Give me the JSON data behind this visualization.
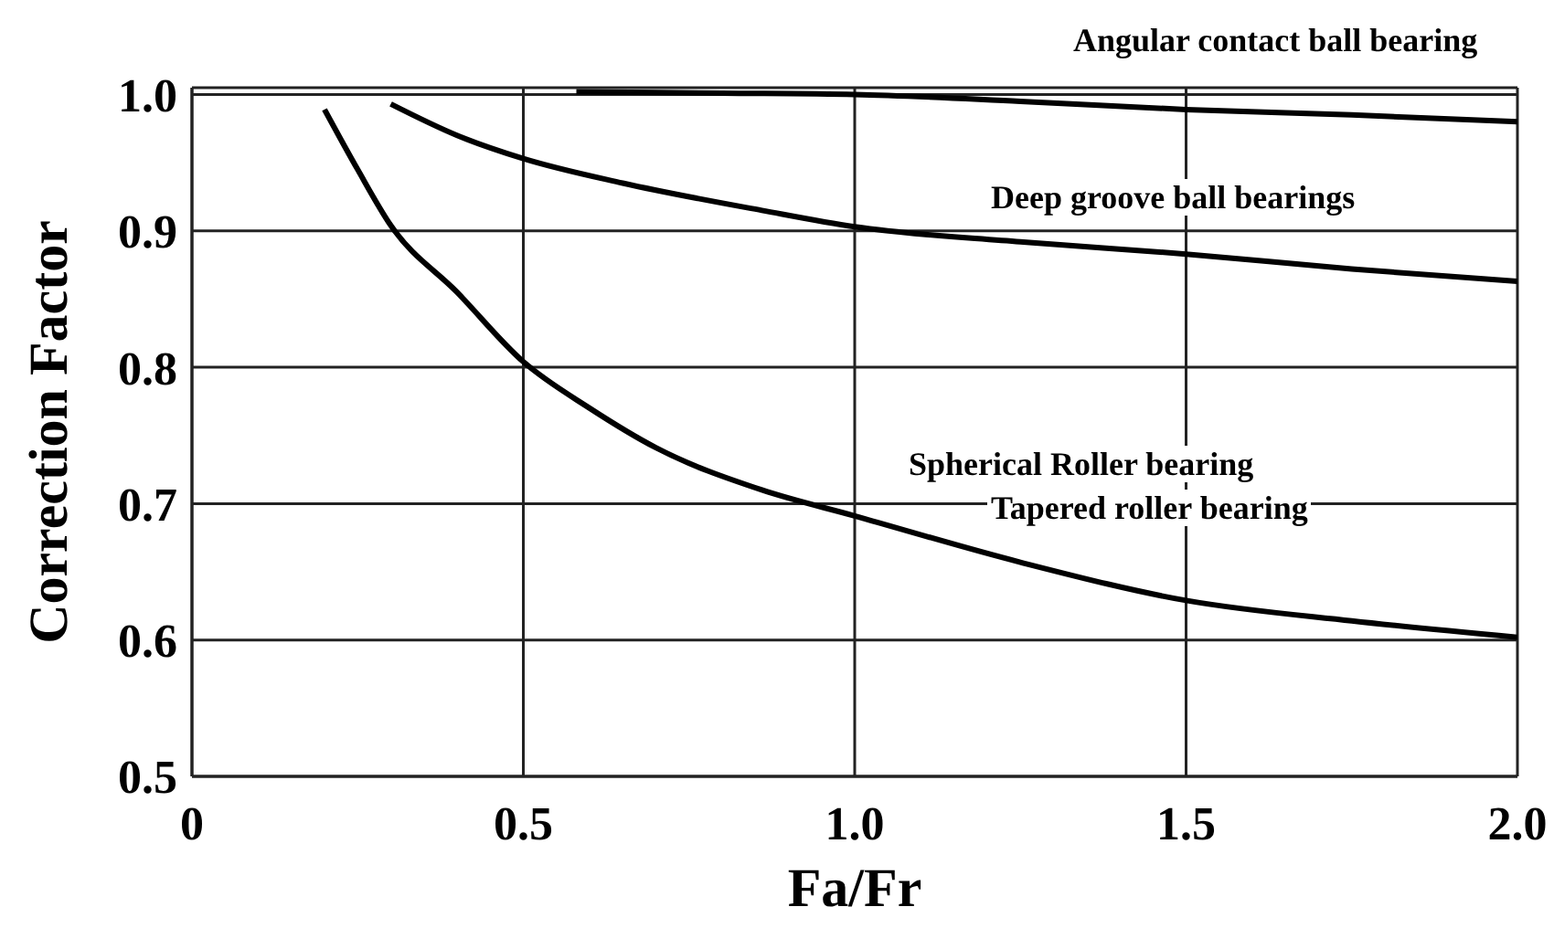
{
  "chart_data": {
    "type": "line",
    "xlabel": "Fa/Fr",
    "ylabel": "Correction Factor",
    "xlim": [
      0,
      2.0
    ],
    "xticks": [
      0,
      0.5,
      {
        "value": 1.0,
        "label": "1.0"
      },
      1.5,
      {
        "value": 2.0,
        "label": "2.0"
      }
    ],
    "ylim": [
      0.5,
      1.005
    ],
    "yticks": [
      0.5,
      0.6,
      0.7,
      0.8,
      0.9,
      {
        "value": 1.0,
        "label": "1.0"
      }
    ],
    "grid": true,
    "marker": "none",
    "line_style": "solid",
    "series": [
      {
        "color": "#000000",
        "x": [
          0.58,
          0.8,
          1.0,
          1.25,
          1.5,
          1.75,
          2.0
        ],
        "values": [
          1.002,
          1.001,
          1.0,
          0.995,
          0.989,
          0.985,
          0.98
        ]
      },
      {
        "color": "#000000",
        "x": [
          0.3,
          0.4,
          0.5,
          0.65,
          0.86,
          1.0,
          1.25,
          1.5,
          1.75,
          2.0
        ],
        "values": [
          0.993,
          0.97,
          0.953,
          0.935,
          0.915,
          0.903,
          0.892,
          0.883,
          0.872,
          0.863
        ]
      },
      {
        "color": "#000000",
        "x": [
          0.2,
          0.25,
          0.3,
          0.4,
          0.5,
          0.6,
          0.7,
          0.86,
          1.0,
          1.25,
          1.5,
          1.75,
          2.0
        ],
        "values": [
          0.989,
          0.945,
          0.904,
          0.855,
          0.804,
          0.77,
          0.741,
          0.71,
          0.691,
          0.657,
          0.629,
          0.614,
          0.602
        ]
      }
    ],
    "annotations": [
      "Angular contact ball bearing",
      "Deep groove ball bearings",
      "Spherical Roller bearing",
      "Tapered roller bearing"
    ]
  }
}
